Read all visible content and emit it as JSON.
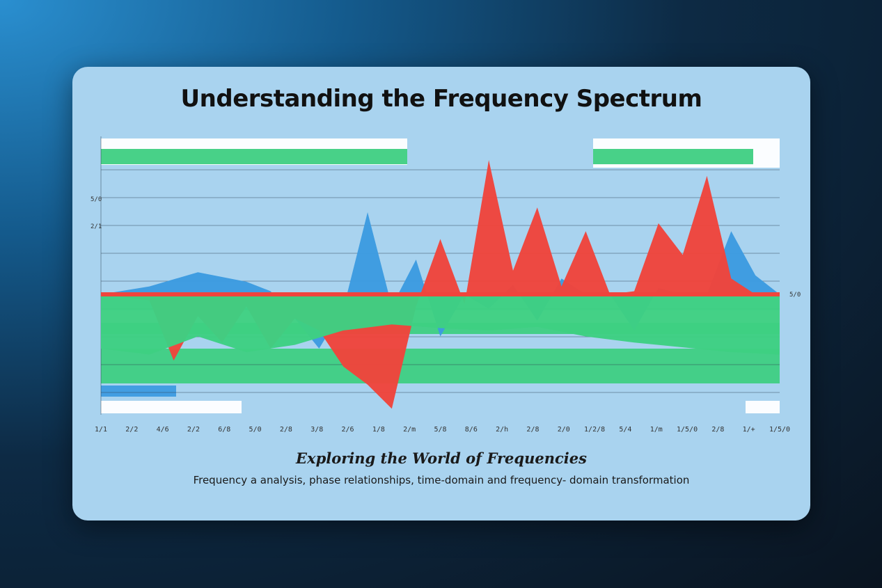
{
  "chart_data": {
    "type": "area",
    "title": "Understanding the Frequency Spectrum",
    "subtitle": "Exploring the World of Frequencies",
    "caption": "Frequency a analysis, phase relationships, time-domain and frequency- domain transformation",
    "xlabel": "",
    "ylabel": "",
    "x_tick_labels": [
      "1/1",
      "2/2",
      "4/6",
      "2/2",
      "6/8",
      "5/0",
      "2/8",
      "3/8",
      "2/6",
      "1/8",
      "2/m",
      "5/8",
      "8/6",
      "2/h",
      "2/8",
      "2/0",
      "1/2/8",
      "5/4",
      "1/m",
      "1/5/0",
      "2/8",
      "1/+",
      "1/5/0"
    ],
    "y_tick_labels": [
      "5/0",
      "2/1",
      "5/0"
    ],
    "ylim": [
      -100,
      100
    ],
    "grid": true,
    "series": [
      {
        "color": "#3d9be0",
        "x": [
          0,
          2,
          4,
          6,
          7,
          8,
          9,
          10,
          11,
          12,
          13,
          14,
          15,
          16,
          17,
          18,
          19,
          20,
          21,
          22,
          23,
          24,
          25,
          26,
          27,
          28
        ],
        "values": [
          0,
          5,
          14,
          8,
          2,
          -20,
          -45,
          -12,
          52,
          -10,
          22,
          -35,
          0,
          -12,
          6,
          -22,
          10,
          0,
          0,
          -30,
          4,
          0,
          0,
          40,
          12,
          0
        ]
      },
      {
        "color": "#f0443c",
        "x": [
          0,
          2,
          3,
          4,
          5,
          6,
          7,
          8,
          9,
          10,
          11,
          12,
          13,
          14,
          15,
          16,
          17,
          18,
          19,
          20,
          21,
          22,
          23,
          24,
          25,
          26,
          27,
          28
        ],
        "values": [
          0,
          -5,
          -55,
          -18,
          -40,
          -10,
          -45,
          -20,
          -30,
          -60,
          -75,
          -95,
          -10,
          35,
          -8,
          85,
          15,
          55,
          5,
          40,
          0,
          2,
          45,
          25,
          75,
          10,
          0,
          0
        ]
      },
      {
        "color": "#3ecf82",
        "x": [
          0,
          2,
          4,
          6,
          8,
          10,
          12,
          14,
          16,
          18,
          20,
          22,
          24,
          26,
          28
        ],
        "values": [
          -45,
          -50,
          -35,
          -48,
          -42,
          -30,
          -25,
          -28,
          -30,
          -27,
          -35,
          -40,
          -44,
          -48,
          -50
        ]
      }
    ]
  }
}
